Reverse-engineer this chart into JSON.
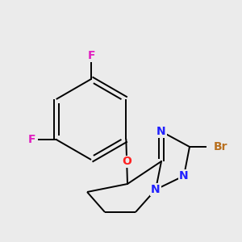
{
  "background_color": "#ebebeb",
  "colors": {
    "C": "#000000",
    "N": "#2020ff",
    "O": "#ff2020",
    "F": "#e020c0",
    "Br": "#b87020",
    "bond": "#000000"
  },
  "font_size": 10,
  "line_width": 1.4
}
